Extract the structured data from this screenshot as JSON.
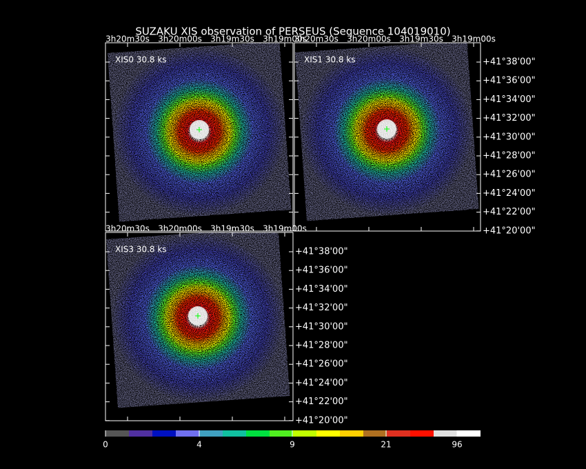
{
  "title": "SUZAKU XIS observation of PERSEUS  (Sequence 104019010)",
  "panels": [
    {
      "label": "XIS0 30.8 ks",
      "ra_ticks": [
        "3h20m30s",
        "3h20m00s",
        "3h19m30s",
        "3h19m00s"
      ]
    },
    {
      "label": "XIS1 30.8 ks",
      "ra_ticks": [
        "3h20m30s",
        "3h20m00s",
        "3h19m30s",
        "3h19m00s"
      ],
      "dec_ticks": [
        "+41°38'00\"",
        "+41°36'00\"",
        "+41°34'00\"",
        "+41°32'00\"",
        "+41°30'00\"",
        "+41°28'00\"",
        "+41°26'00\"",
        "+41°24'00\"",
        "+41°22'00\"",
        "+41°20'00\""
      ]
    },
    {
      "label": "XIS3 30.8 ks",
      "ra_ticks": [
        "3h20m30s",
        "3h20m00s",
        "3h19m30s",
        "3h19m00s"
      ],
      "dec_ticks": [
        "+41°38'00\"",
        "+41°36'00\"",
        "+41°34'00\"",
        "+41°32'00\"",
        "+41°30'00\"",
        "+41°28'00\"",
        "+41°26'00\"",
        "+41°24'00\"",
        "+41°22'00\"",
        "+41°20'00\""
      ]
    }
  ],
  "colorbar": {
    "ticks": [
      "0",
      "4",
      "9",
      "21",
      "96"
    ]
  }
}
